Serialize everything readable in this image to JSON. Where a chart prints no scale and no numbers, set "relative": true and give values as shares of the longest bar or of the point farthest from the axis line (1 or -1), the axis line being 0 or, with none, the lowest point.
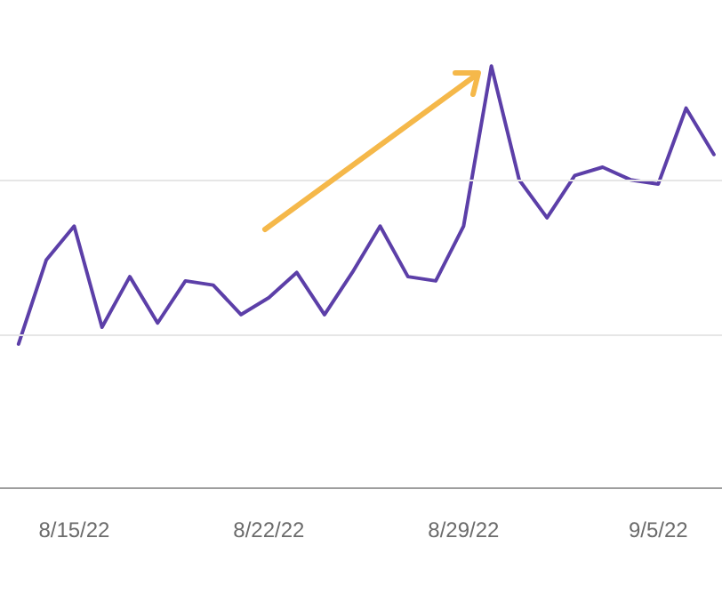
{
  "chart_data": {
    "type": "line",
    "relative": true,
    "color": "#5c3fa8",
    "ref_lines": [
      {
        "axis": "y",
        "value": 0.365,
        "color": "#e6e6e6"
      },
      {
        "axis": "y",
        "value": 0.73,
        "color": "#e6e6e6"
      }
    ],
    "marker": "none",
    "line_style": "solid",
    "x": [
      "--08-13",
      "--08-14",
      "--08-15",
      "--08-16",
      "--08-17",
      "--08-18",
      "--08-19",
      "--08-20",
      "--08-21",
      "--08-22",
      "--08-23",
      "--08-24",
      "--08-25",
      "--08-26",
      "--08-27",
      "--08-28",
      "--08-29",
      "--08-30",
      "--08-31",
      "--09-01",
      "--09-02",
      "--09-03",
      "--09-04",
      "--09-05",
      "--09-06",
      "--09-07"
    ],
    "values": [
      0.34,
      0.54,
      0.62,
      0.38,
      0.5,
      0.39,
      0.49,
      0.48,
      0.41,
      0.45,
      0.51,
      0.41,
      0.51,
      0.62,
      0.5,
      0.49,
      0.62,
      1,
      0.73,
      0.64,
      0.74,
      0.76,
      0.73,
      0.72,
      0.9,
      0.79
    ],
    "xlim": [
      "--08-12T08:00",
      "--09-07T07:00"
    ],
    "xticks": [
      {
        "value": "--08-15",
        "label": "8/15/22"
      },
      {
        "value": "--08-22",
        "label": "8/22/22"
      },
      {
        "value": "--08-29",
        "label": "8/29/22"
      },
      {
        "value": "--09-05",
        "label": "9/5/22"
      }
    ]
  }
}
